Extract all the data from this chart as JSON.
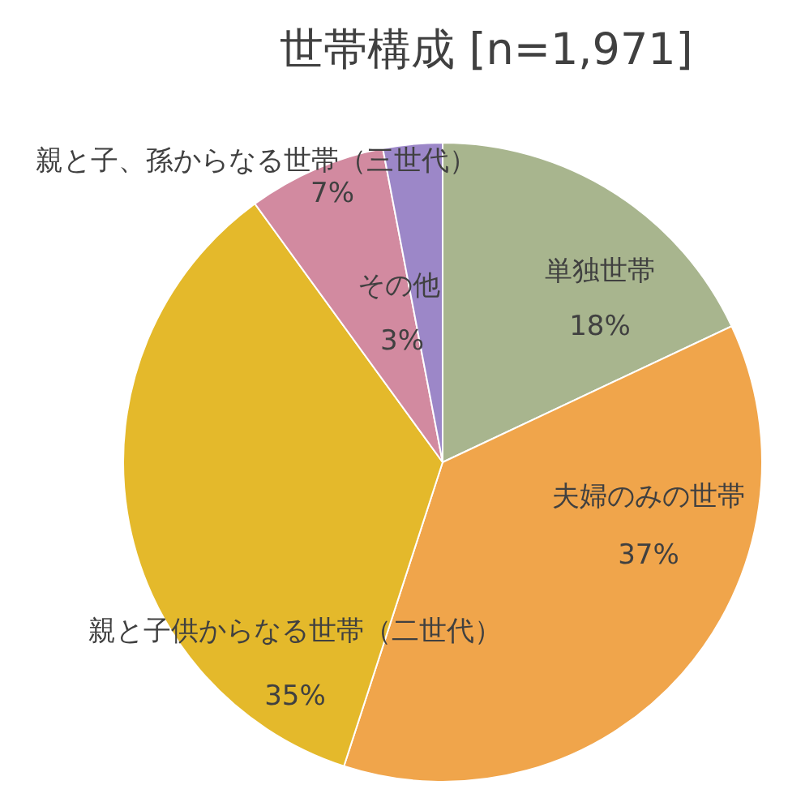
{
  "chart_data": {
    "type": "pie",
    "title": "世帯構成 [n=1,971]",
    "categories": [
      "単独世帯",
      "夫婦のみの世帯",
      "親と子供からなる世帯（二世代）",
      "親と子、孫からなる世帯（三世代）",
      "その他"
    ],
    "values": [
      18,
      37,
      35,
      7,
      3
    ],
    "colors": [
      "#a8b58e",
      "#f0a54b",
      "#e4b92b",
      "#d28aa0",
      "#9c87c8"
    ],
    "value_labels": [
      "18%",
      "37%",
      "35%",
      "7%",
      "3%"
    ]
  }
}
